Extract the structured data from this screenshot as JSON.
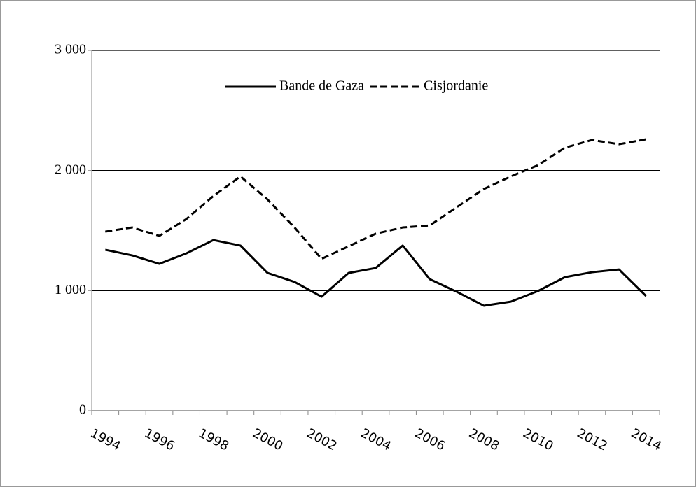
{
  "chart_data": {
    "type": "line",
    "categories": [
      "1994",
      null,
      "1996",
      null,
      "1998",
      null,
      "2000",
      null,
      "2002",
      null,
      "2004",
      null,
      "2006",
      null,
      "2008",
      null,
      "2010",
      null,
      "2012",
      null,
      "2014"
    ],
    "series": [
      {
        "name": "Bande de Gaza",
        "color": "#000000",
        "style": "solid",
        "values": [
          1340,
          1293,
          1223,
          1310,
          1421,
          1375,
          1147,
          1072,
          949,
          1147,
          1188,
          1375,
          1095,
          990,
          874,
          908,
          996,
          1112,
          1153,
          1176,
          955
        ]
      },
      {
        "name": "Cisjordanie",
        "color": "#000000",
        "style": "dashed",
        "values": [
          1491,
          1526,
          1456,
          1596,
          1788,
          1951,
          1759,
          1526,
          1264,
          1369,
          1474,
          1526,
          1543,
          1695,
          1846,
          1951,
          2044,
          2190,
          2254,
          2219,
          2260
        ]
      }
    ],
    "ylim": [
      0,
      3000
    ],
    "yticks": [
      0,
      {
        "value": 1000,
        "label": "1 000"
      },
      {
        "value": 2000,
        "label": "2 000"
      },
      {
        "value": 3000,
        "label": "3 000"
      }
    ],
    "grid": true,
    "legend": "top"
  }
}
